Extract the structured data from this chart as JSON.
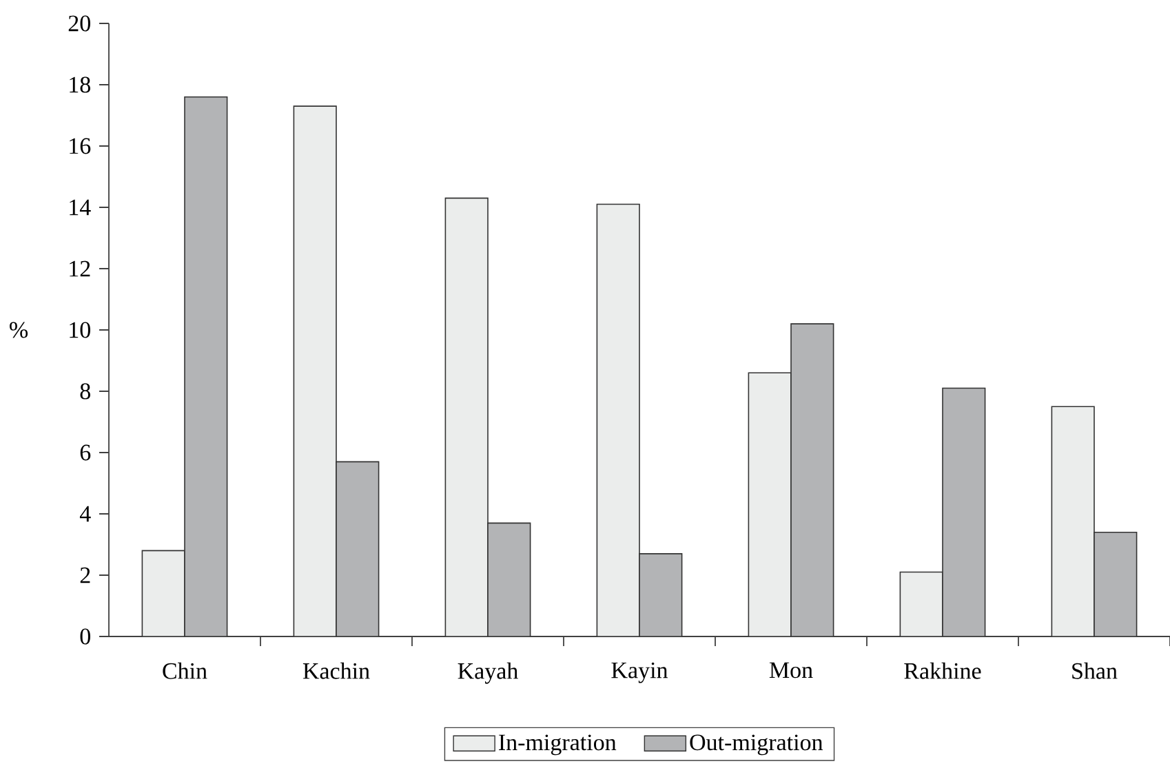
{
  "chart_data": {
    "type": "bar",
    "ylabel": "%",
    "categories": [
      "Chin",
      "Kachin",
      "Kayah",
      "Kayin",
      "Mon",
      "Rakhine",
      "Shan"
    ],
    "series": [
      {
        "name": "In-migration",
        "color": "#ebedec",
        "values": [
          2.8,
          17.3,
          14.3,
          14.1,
          8.6,
          2.1,
          7.5
        ]
      },
      {
        "name": "Out-migration",
        "color": "#b3b4b6",
        "values": [
          17.6,
          5.7,
          3.7,
          2.7,
          10.2,
          8.1,
          3.4
        ]
      }
    ],
    "ylim": [
      0,
      20
    ],
    "yticks": [
      0,
      2,
      4,
      6,
      8,
      10,
      12,
      14,
      16,
      18,
      20
    ],
    "legend": "bottom",
    "grid": false
  }
}
